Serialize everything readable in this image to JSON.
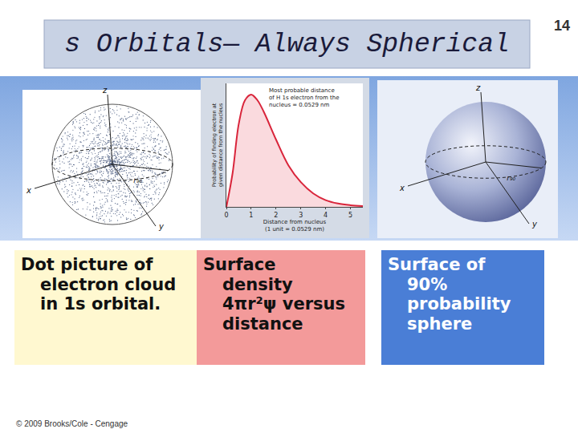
{
  "slide": {
    "title": "s Orbitals— Always Spherical",
    "page_number": 14,
    "copyright": "© 2009 Brooks/Cole - Cengage",
    "panels": [
      {
        "caption": [
          "Dot picture of",
          "electron cloud",
          "in 1s orbital."
        ],
        "axis_labels": [
          "z",
          "x",
          "y"
        ],
        "radius_label": "r₉₀"
      },
      {
        "caption": [
          "Surface",
          "density",
          "4πr²ψ versus",
          "distance"
        ]
      },
      {
        "caption": [
          "Surface of",
          "90%",
          "probability",
          "sphere"
        ],
        "axis_labels": [
          "z",
          "x",
          "y"
        ],
        "radius_label": "r₉₀"
      }
    ]
  },
  "chart_data": {
    "type": "line",
    "x_label": [
      "Distance from nucleus",
      "(1 unit = 0.0529 nm)"
    ],
    "y_label": [
      "Probability of finding electron at",
      "given distance from the nucleus"
    ],
    "annotation": [
      "Most probable distance",
      "of H 1s electron from the",
      "nucleus = 0.0529 nm"
    ],
    "x": [
      0,
      0.25,
      0.5,
      0.75,
      1,
      1.25,
      1.5,
      2,
      2.5,
      3,
      3.5,
      4,
      4.5,
      5,
      5.5
    ],
    "values": [
      0,
      0.3,
      0.74,
      0.95,
      1.0,
      0.95,
      0.85,
      0.6,
      0.37,
      0.22,
      0.12,
      0.06,
      0.03,
      0.015,
      0.007
    ],
    "color": "#d9253b",
    "xlim": [
      0,
      5.5
    ],
    "xticks": [
      0,
      1,
      2,
      3,
      4,
      5
    ],
    "ylim": [
      0,
      1.1
    ],
    "yticks": [],
    "tick_labels": "x",
    "grid": false
  }
}
